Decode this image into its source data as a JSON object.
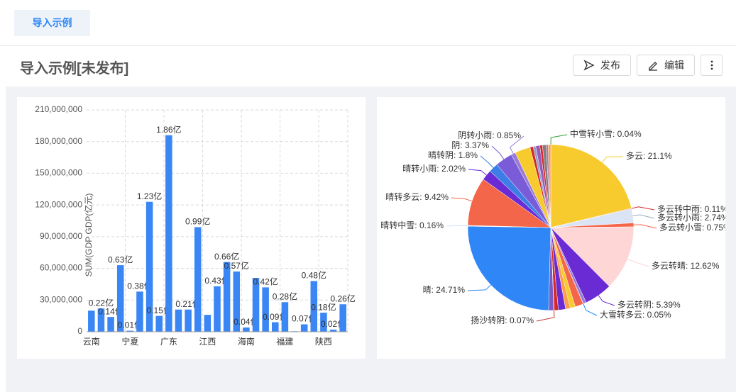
{
  "header": {
    "tab": "导入示例",
    "title": "导入示例[未发布]",
    "buttons": [
      "发布",
      "编辑"
    ]
  },
  "chart_data": [
    {
      "type": "bar",
      "y_label": "SUM(GDP GDP(亿元)",
      "categories": [
        "云南",
        null,
        null,
        null,
        "宁夏",
        null,
        null,
        null,
        "广东",
        null,
        null,
        null,
        "江西",
        null,
        null,
        null,
        "海南",
        null,
        null,
        null,
        "福建",
        null,
        null,
        null,
        "陕西",
        null,
        null
      ],
      "values": [
        20000000,
        22000000,
        14000000,
        63000000,
        1000000,
        38000000,
        123000000,
        15000000,
        186000000,
        21000000,
        21000000,
        99000000,
        16000000,
        43000000,
        66000000,
        57000000,
        4000000,
        51000000,
        42000000,
        9000000,
        28000000,
        500000,
        7000000,
        48000000,
        18000000,
        2000000,
        26000000
      ],
      "value_labels": [
        null,
        "0.22亿",
        "0.14亿",
        "0.63亿",
        "0.01亿",
        "0.38亿",
        "1.23亿",
        "0.15亿",
        "1.86亿",
        null,
        "0.21亿",
        "0.99亿",
        null,
        "0.43亿",
        "0.66亿",
        "0.57亿",
        "0.04亿",
        null,
        "0.42亿",
        "0.09亿",
        "0.28亿",
        null,
        "0.07亿",
        "0.48亿",
        "0.18亿",
        "0.02亿",
        "0.26亿"
      ],
      "color": "#3a86f5",
      "ylim": [
        0,
        210000000
      ],
      "yticks": [
        0,
        {
          "value": 30000000,
          "label": "30,000,000"
        },
        {
          "value": 60000000,
          "label": "60,000,000"
        },
        {
          "value": 90000000,
          "label": "90,000,000"
        },
        {
          "value": 120000000,
          "label": "120,000,000"
        },
        {
          "value": 150000000,
          "label": "150,000,000"
        },
        {
          "value": 180000000,
          "label": "180,000,000"
        },
        {
          "value": 210000000,
          "label": "210,000,000"
        }
      ],
      "grid": true
    },
    {
      "type": "pie",
      "labels": [
        "中雪转小雪: 0.04%",
        "多云: 21.1%",
        "多云转中雨: 0.11%",
        "多云转小雨: 2.74%",
        "多云转小雪: 0.75%",
        "多云转晴: 12.62%",
        "多云转阴: 5.39%",
        null,
        "大雪转多云: 0.05%",
        null,
        null,
        null,
        null,
        null,
        "扬沙转阴: 0.07%",
        null,
        "晴: 24.71%",
        "晴转中雪: 0.16%",
        "晴转多云: 9.42%",
        "晴转小雨: 2.02%",
        "晴转阴: 1.8%",
        "阴: 3.37%",
        "阴转小雨: 0.85%",
        null,
        null,
        null,
        null,
        null,
        null,
        null,
        null
      ],
      "values": [
        0.04,
        21.1,
        0.11,
        2.74,
        0.75,
        12.62,
        5.39,
        0.6,
        0.05,
        1.6,
        1.0,
        0.9,
        1.4,
        0.8,
        0.07,
        1.0,
        24.71,
        0.16,
        9.42,
        2.02,
        1.8,
        3.37,
        0.85,
        3.0,
        0.6,
        0.5,
        0.8,
        0.5,
        0.7,
        0.4,
        0.5
      ],
      "colors": [
        "#2ca02c",
        "#f7ca2e",
        "#d62728",
        "#dbe4f5",
        "#f4664a",
        "#ffd6d6",
        "#6a2bd4",
        "#9b7bd8",
        "#1e90ff",
        "#f4664a",
        "#f7ca2e",
        "#ff9d4d",
        "#6a2bd4",
        "#d62728",
        "#c0392b",
        "#7a5bc4",
        "#2f86f6",
        "#cfe3ff",
        "#f4664a",
        "#6a2bd4",
        "#3d7ee6",
        "#7a5bd8",
        "#9b7bd8",
        "#f7ca2e",
        "#d62728",
        "#8da0cb",
        "#9b59b6",
        "#d62728",
        "#7f7f7f",
        "#b07aa1",
        "#ff9d4d"
      ]
    }
  ]
}
